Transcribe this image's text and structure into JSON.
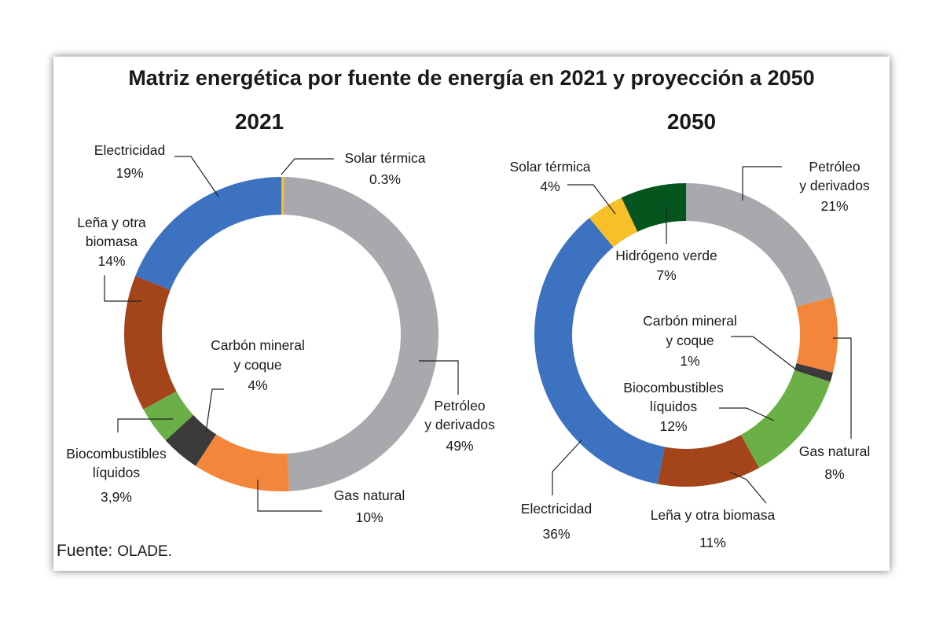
{
  "chart_data": {
    "type": "pie",
    "title": "Matriz energética por fuente de energía en 2021 y proyección a 2050",
    "source": {
      "label": "Fuente:",
      "org": "OLADE."
    },
    "charts": [
      {
        "year": "2021",
        "slices": [
          {
            "name": "Solar térmica",
            "value": 0.3,
            "value_label": "0.3%",
            "color": "#f7c028"
          },
          {
            "name": "Petróleo y derivados",
            "value": 49,
            "value_label": "49%",
            "color": "#a7a9ac"
          },
          {
            "name": "Gas natural",
            "value": 10,
            "value_label": "10%",
            "color": "#f4863b"
          },
          {
            "name": "Carbón mineral y coque",
            "value": 4,
            "value_label": "4%",
            "color": "#3b3b3b"
          },
          {
            "name": "Biocombustibles líquidos",
            "value": 3.9,
            "value_label": "3,9%",
            "color": "#6ab046"
          },
          {
            "name": "Leña y otra biomasa",
            "value": 14,
            "value_label": "14%",
            "color": "#a4441b"
          },
          {
            "name": "Electricidad",
            "value": 19,
            "value_label": "19%",
            "color": "#3c72bf"
          }
        ]
      },
      {
        "year": "2050",
        "slices": [
          {
            "name": "Petróleo y derivados",
            "value": 21,
            "value_label": "21%",
            "color": "#a7a9ac"
          },
          {
            "name": "Gas natural",
            "value": 8,
            "value_label": "8%",
            "color": "#f4863b"
          },
          {
            "name": "Carbón mineral y coque",
            "value": 1,
            "value_label": "1%",
            "color": "#3b3b3b"
          },
          {
            "name": "Biocombustibles líquidos",
            "value": 12,
            "value_label": "12%",
            "color": "#6ab046"
          },
          {
            "name": "Leña y otra biomasa",
            "value": 11,
            "value_label": "11%",
            "color": "#a4441b"
          },
          {
            "name": "Electricidad",
            "value": 36,
            "value_label": "36%",
            "color": "#3c72bf"
          },
          {
            "name": "Solar térmica",
            "value": 4,
            "value_label": "4%",
            "color": "#f7c028"
          },
          {
            "name": "Hidrógeno verde",
            "value": 7,
            "value_label": "7%",
            "color": "#05561e"
          }
        ]
      }
    ],
    "labels_2021": {
      "solar": [
        "Solar térmica",
        "0.3%"
      ],
      "petroleo": [
        "Petróleo",
        "y derivados",
        "49%"
      ],
      "gas": [
        "Gas natural",
        "10%"
      ],
      "carbon": [
        "Carbón mineral",
        "y coque",
        "4%"
      ],
      "bio": [
        "Biocombustibles",
        "líquidos",
        "3,9%"
      ],
      "lena": [
        "Leña y otra",
        "biomasa",
        "14%"
      ],
      "elec": [
        "Electricidad",
        "19%"
      ]
    },
    "labels_2050": {
      "petroleo": [
        "Petróleo",
        "y derivados",
        "21%"
      ],
      "gas": [
        "Gas natural",
        "8%"
      ],
      "carbon": [
        "Carbón mineral",
        "y coque",
        "1%"
      ],
      "bio": [
        "Biocombustibles",
        "líquidos",
        "12%"
      ],
      "lena": [
        "Leña y otra biomasa",
        "11%"
      ],
      "elec": [
        "Electricidad",
        "36%"
      ],
      "solar": [
        "Solar térmica",
        "4%"
      ],
      "hidrogeno": [
        "Hidrógeno verde",
        "7%"
      ]
    }
  }
}
